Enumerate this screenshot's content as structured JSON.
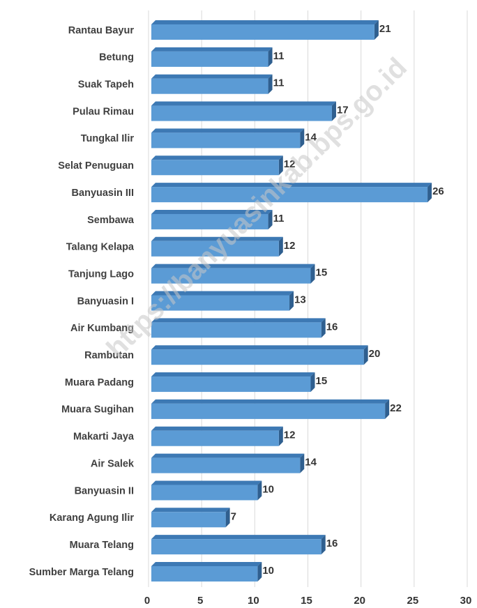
{
  "chart_data": {
    "type": "bar",
    "orientation": "horizontal",
    "categories": [
      "Rantau Bayur",
      "Betung",
      "Suak Tapeh",
      "Pulau Rimau",
      "Tungkal Ilir",
      "Selat Penuguan",
      "Banyuasin III",
      "Sembawa",
      "Talang Kelapa",
      "Tanjung Lago",
      "Banyuasin I",
      "Air Kumbang",
      "Rambutan",
      "Muara Padang",
      "Muara Sugihan",
      "Makarti Jaya",
      "Air Salek",
      "Banyuasin II",
      "Karang Agung Ilir",
      "Muara Telang",
      "Sumber Marga Telang"
    ],
    "values": [
      21,
      11,
      11,
      17,
      14,
      12,
      26,
      11,
      12,
      15,
      13,
      16,
      20,
      15,
      22,
      12,
      14,
      10,
      7,
      16,
      10
    ],
    "color": "#5b9bd5",
    "xlim": [
      0,
      30
    ],
    "xticks": [
      0,
      5,
      10,
      15,
      20,
      25,
      30
    ],
    "grid": true,
    "watermark": "https://banyuasinkab.bps.go.id"
  }
}
